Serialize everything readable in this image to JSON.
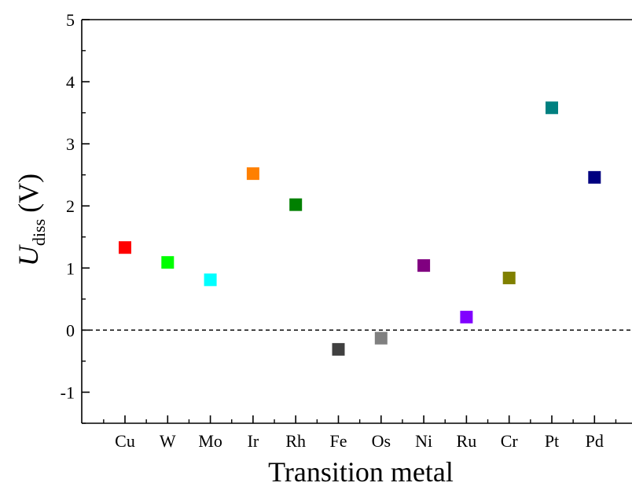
{
  "chart_data": {
    "type": "scatter",
    "title": "",
    "xlabel": "Transition metal",
    "ylabel": {
      "symbol": "U",
      "subscript": "diss",
      "unit": "(V)"
    },
    "categories": [
      "Cu",
      "W",
      "Mo",
      "Ir",
      "Rh",
      "Fe",
      "Os",
      "Ni",
      "Ru",
      "Cr",
      "Pt",
      "Pd"
    ],
    "values": [
      1.33,
      1.09,
      0.81,
      2.52,
      2.02,
      -0.31,
      -0.13,
      1.04,
      0.21,
      0.84,
      3.58,
      2.46
    ],
    "colors": [
      "#ff0000",
      "#00ff00",
      "#00ffff",
      "#ff8000",
      "#008000",
      "#404040",
      "#808080",
      "#800080",
      "#8000ff",
      "#808000",
      "#008080",
      "#000080"
    ],
    "ylim": [
      -1.5,
      5
    ],
    "yticks": [
      -1,
      0,
      1,
      2,
      3,
      4,
      5
    ],
    "ytick_labels": [
      "-1",
      "0",
      "1",
      "2",
      "3",
      "4",
      "5"
    ],
    "reference_line": {
      "y": 0,
      "style": "dashed"
    },
    "grid": false,
    "marker": "square"
  }
}
